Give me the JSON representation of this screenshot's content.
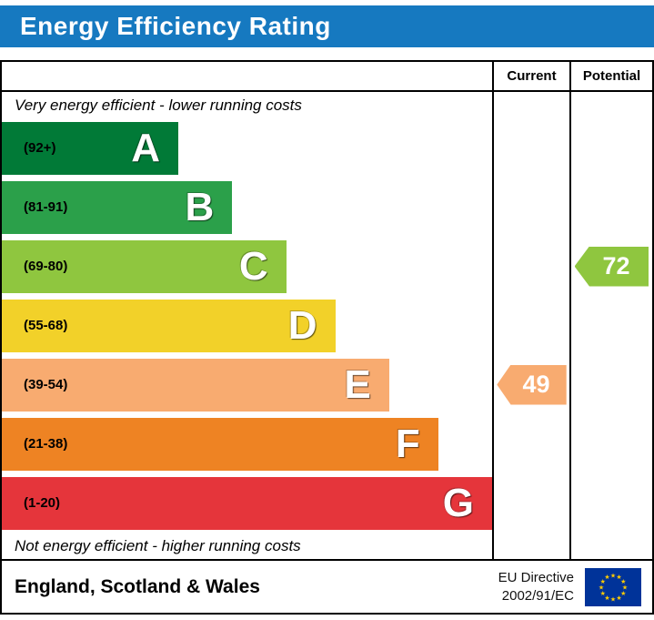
{
  "header": {
    "title": "Energy Efficiency Rating",
    "bg_color": "#1679c0"
  },
  "table": {
    "columns": {
      "current": "Current",
      "potential": "Potential"
    },
    "caption_top": "Very energy efficient - lower running costs",
    "caption_bottom": "Not energy efficient - higher running costs"
  },
  "bands": [
    {
      "letter": "A",
      "range": "(92+)",
      "color": "#017a37",
      "width_pct": 36
    },
    {
      "letter": "B",
      "range": "(81-91)",
      "color": "#2ba04a",
      "width_pct": 47
    },
    {
      "letter": "C",
      "range": "(69-80)",
      "color": "#8fc63f",
      "width_pct": 58
    },
    {
      "letter": "D",
      "range": "(55-68)",
      "color": "#f2d129",
      "width_pct": 68
    },
    {
      "letter": "E",
      "range": "(39-54)",
      "color": "#f8ab70",
      "width_pct": 79
    },
    {
      "letter": "F",
      "range": "(21-38)",
      "color": "#ee8323",
      "width_pct": 89
    },
    {
      "letter": "G",
      "range": "(1-20)",
      "color": "#e5353b",
      "width_pct": 100
    }
  ],
  "ratings": {
    "current": {
      "value": "49",
      "band": "E",
      "color": "#f8ab70"
    },
    "potential": {
      "value": "72",
      "band": "C",
      "color": "#8fc63f"
    }
  },
  "footer": {
    "region": "England, Scotland & Wales",
    "directive_line1": "EU Directive",
    "directive_line2": "2002/91/EC",
    "flag_bg": "#003399",
    "flag_star": "#ffcc00"
  },
  "chart_data": {
    "type": "bar",
    "title": "Energy Efficiency Rating",
    "categories": [
      "A",
      "B",
      "C",
      "D",
      "E",
      "F",
      "G"
    ],
    "band_ranges": [
      "92+",
      "81-91",
      "69-80",
      "55-68",
      "39-54",
      "21-38",
      "1-20"
    ],
    "band_colors": [
      "#017a37",
      "#2ba04a",
      "#8fc63f",
      "#f2d129",
      "#f8ab70",
      "#ee8323",
      "#e5353b"
    ],
    "values": [
      36,
      47,
      58,
      68,
      79,
      89,
      100
    ],
    "markers": [
      {
        "name": "Current",
        "value": 49,
        "band": "E"
      },
      {
        "name": "Potential",
        "value": 72,
        "band": "C"
      }
    ],
    "annotations": [
      "Very energy efficient - lower running costs",
      "Not energy efficient - higher running costs"
    ],
    "region": "England, Scotland & Wales",
    "directive": "EU Directive 2002/91/EC",
    "legend_position": "none",
    "grid": false
  }
}
